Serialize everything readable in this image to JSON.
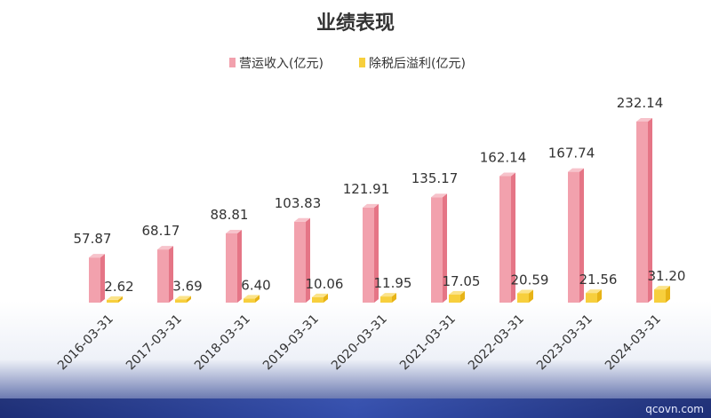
{
  "watermark": "qcovn.com",
  "chart_data": {
    "type": "bar",
    "title": "业绩表现",
    "categories": [
      "2016-03-31",
      "2017-03-31",
      "2018-03-31",
      "2019-03-31",
      "2020-03-31",
      "2021-03-31",
      "2022-03-31",
      "2023-03-31",
      "2024-03-31"
    ],
    "series": [
      {
        "name": "营运收入(亿元)",
        "color": "#f2a1ad",
        "values": [
          57.87,
          68.17,
          88.81,
          103.83,
          121.91,
          135.17,
          162.14,
          167.74,
          232.14
        ]
      },
      {
        "name": "除税后溢利(亿元)",
        "color": "#f7cf3d",
        "values": [
          2.62,
          3.69,
          6.4,
          10.06,
          11.95,
          17.05,
          20.59,
          21.56,
          31.2
        ]
      }
    ],
    "value_labels": {
      "s0": [
        "57.87",
        "68.17",
        "88.81",
        "103.83",
        "121.91",
        "135.17",
        "162.14",
        "167.74",
        "232.14"
      ],
      "s1": [
        "2.62",
        "3.69",
        "6.40",
        "10.06",
        "11.95",
        "17.05",
        "20.59",
        "21.56",
        "31.20"
      ]
    },
    "ylim": [
      0,
      240
    ],
    "grid": false,
    "legend": "top-center",
    "xlabel": "",
    "ylabel": ""
  }
}
